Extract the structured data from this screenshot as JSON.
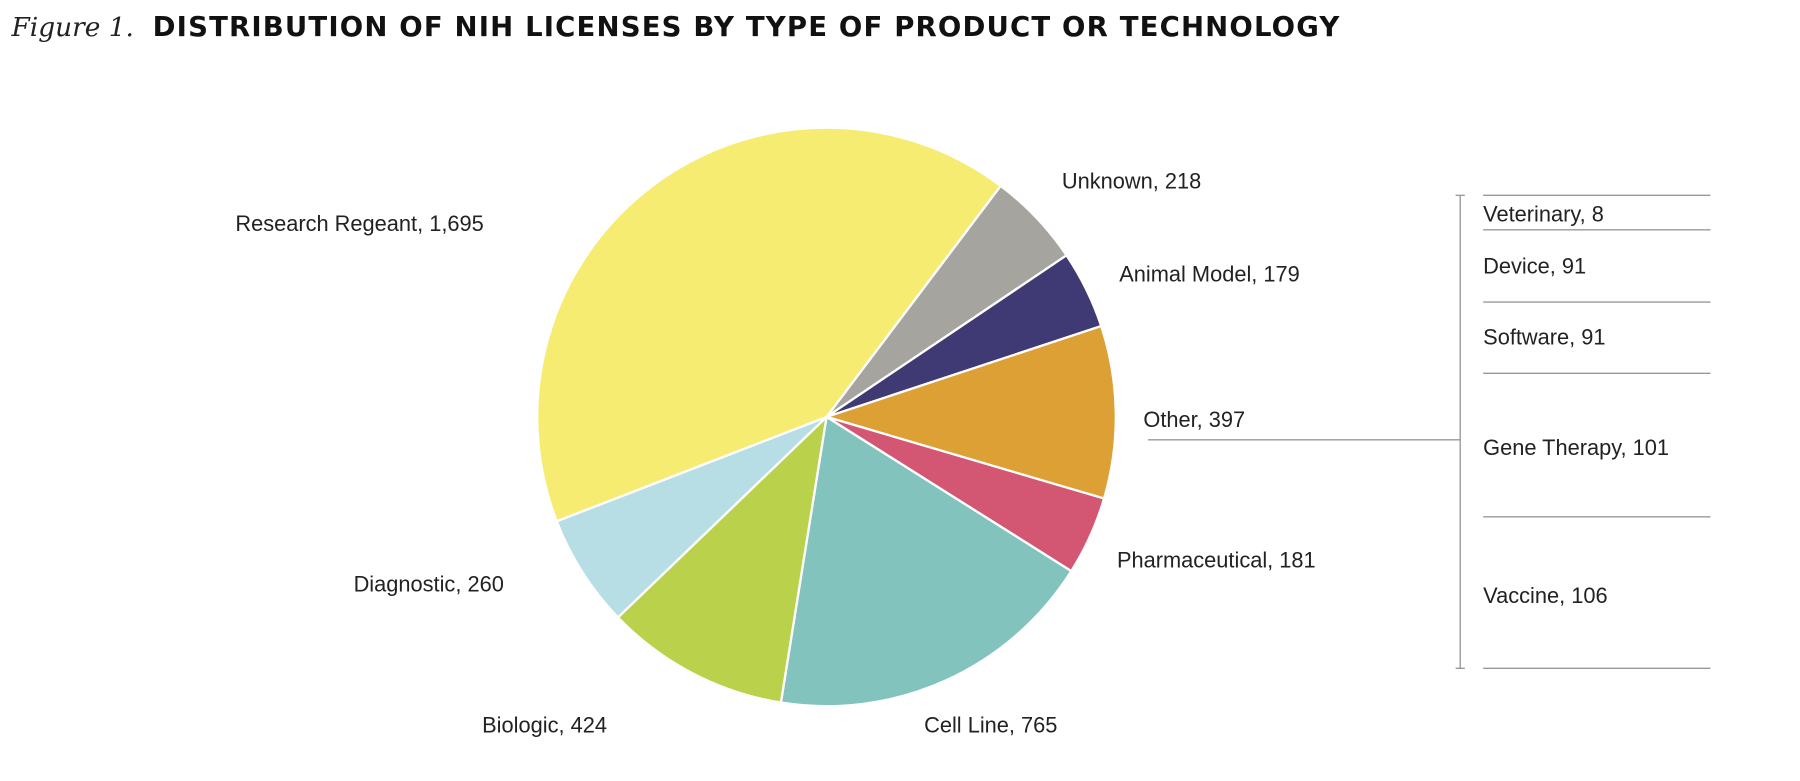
{
  "chart_data": {
    "type": "pie",
    "figure_label": "Figure 1.",
    "title": "DISTRIBUTION OF NIH LICENSES BY TYPE OF PRODUCT OR TECHNOLOGY",
    "slices": [
      {
        "name": "Unknown",
        "value": 218,
        "label": "Unknown, 218",
        "color": "#A6A49F"
      },
      {
        "name": "Animal Model",
        "value": 179,
        "label": "Animal Model, 179",
        "color": "#3F3A74"
      },
      {
        "name": "Other",
        "value": 397,
        "label": "Other, 397",
        "color": "#DDA034"
      },
      {
        "name": "Pharmaceutical",
        "value": 181,
        "label": "Pharmaceutical, 181",
        "color": "#D35673"
      },
      {
        "name": "Cell Line",
        "value": 765,
        "label": "Cell Line, 765",
        "color": "#83C3BD"
      },
      {
        "name": "Biologic",
        "value": 424,
        "label": "Biologic, 424",
        "color": "#BAD24B"
      },
      {
        "name": "Diagnostic",
        "value": 260,
        "label": "Diagnostic, 260",
        "color": "#B7DEE4"
      },
      {
        "name": "Research Regeant",
        "value": 1695,
        "label": "Research Regeant, 1,695",
        "color": "#F6EC72"
      }
    ],
    "other_breakdown": [
      {
        "name": "Veterinary",
        "value": 8,
        "label": "Veterinary, 8"
      },
      {
        "name": "Device",
        "value": 91,
        "label": "Device, 91"
      },
      {
        "name": "Software",
        "value": 91,
        "label": "Software, 91"
      },
      {
        "name": "Gene Therapy",
        "value": 101,
        "label": "Gene Therapy, 101"
      },
      {
        "name": "Vaccine",
        "value": 106,
        "label": "Vaccine, 106"
      }
    ]
  }
}
